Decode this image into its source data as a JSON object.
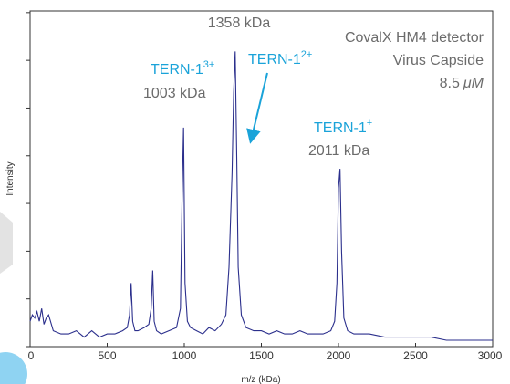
{
  "chart_data": {
    "type": "line",
    "xlabel": "m/z (kDa)",
    "ylabel": "Intensity",
    "xlim": [
      0,
      3000
    ],
    "ylim": [
      0,
      1
    ],
    "x_ticks": [
      "0",
      "500",
      "1000",
      "1500",
      "2000",
      "2500",
      "3000"
    ],
    "y_ticks_count": 8,
    "grid": false,
    "line_color": "#2b2f8c",
    "annotation_blue": "#1aa3d9",
    "annotation_gray": "#6b6b6b",
    "series": [
      {
        "x": [
          0,
          15,
          30,
          45,
          60,
          75,
          90,
          105,
          120,
          150,
          200,
          250,
          300,
          350,
          400,
          450,
          500,
          550,
          600,
          630,
          645,
          655,
          665,
          680,
          700,
          740,
          770,
          785,
          795,
          805,
          820,
          850,
          900,
          950,
          975,
          985,
          995,
          1005,
          1020,
          1040,
          1080,
          1120,
          1160,
          1200,
          1240,
          1270,
          1290,
          1310,
          1320,
          1330,
          1340,
          1350,
          1370,
          1400,
          1450,
          1500,
          1550,
          1600,
          1650,
          1700,
          1750,
          1800,
          1850,
          1900,
          1950,
          1975,
          1990,
          2000,
          2010,
          2020,
          2035,
          2060,
          2100,
          2200,
          2300,
          2400,
          2500,
          2600,
          2700,
          2800,
          2900,
          3000
        ],
        "y": [
          0.08,
          0.1,
          0.09,
          0.11,
          0.08,
          0.12,
          0.07,
          0.09,
          0.1,
          0.05,
          0.04,
          0.04,
          0.05,
          0.03,
          0.05,
          0.03,
          0.04,
          0.04,
          0.05,
          0.06,
          0.1,
          0.2,
          0.08,
          0.05,
          0.05,
          0.06,
          0.07,
          0.12,
          0.24,
          0.08,
          0.05,
          0.04,
          0.05,
          0.06,
          0.12,
          0.45,
          0.69,
          0.2,
          0.08,
          0.06,
          0.05,
          0.04,
          0.06,
          0.05,
          0.07,
          0.1,
          0.25,
          0.55,
          0.8,
          0.93,
          0.6,
          0.25,
          0.1,
          0.06,
          0.05,
          0.05,
          0.04,
          0.05,
          0.04,
          0.04,
          0.05,
          0.04,
          0.04,
          0.04,
          0.05,
          0.08,
          0.2,
          0.5,
          0.56,
          0.3,
          0.09,
          0.05,
          0.04,
          0.04,
          0.03,
          0.03,
          0.03,
          0.03,
          0.02,
          0.02,
          0.02,
          0.02
        ]
      }
    ],
    "annotations": {
      "header_line1": "CovalX HM4 detector",
      "header_line2": "Virus Capside",
      "header_line3_value": "8.5",
      "header_line3_unit": "μM",
      "peak1358_label": "1358 kDa",
      "tern2_base": "TERN-1",
      "tern2_sup": "2+",
      "tern3_base": "TERN-1",
      "tern3_sup": "3+",
      "peak1003_label": "1003 kDa",
      "tern1_base": "TERN-1",
      "tern1_sup": "+",
      "peak2011_label": "2011 kDa"
    }
  }
}
